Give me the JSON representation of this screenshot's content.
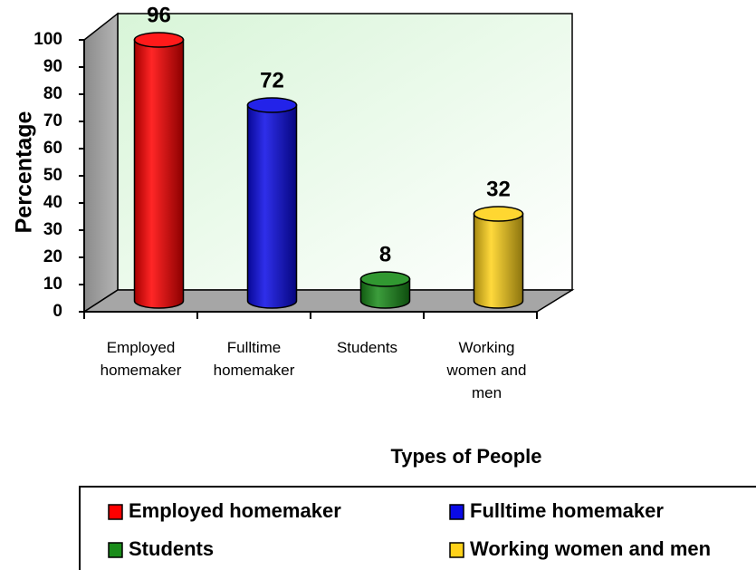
{
  "chart_data": {
    "type": "bar",
    "x_label": "Types of People",
    "y_label": "Percentage",
    "categories": [
      "Employed homemaker",
      "Fulltime homemaker",
      "Students",
      "Working women and men"
    ],
    "values": [
      96,
      72,
      8,
      32
    ],
    "colors": [
      "#ff0000",
      "#0a0ae6",
      "#1a8c1a",
      "#ffd21a"
    ],
    "ylim": [
      0,
      100
    ],
    "yticks": [
      0,
      10,
      20,
      30,
      40,
      50,
      60,
      70,
      80,
      90,
      100
    ],
    "grid": false,
    "legend": "bottom"
  }
}
